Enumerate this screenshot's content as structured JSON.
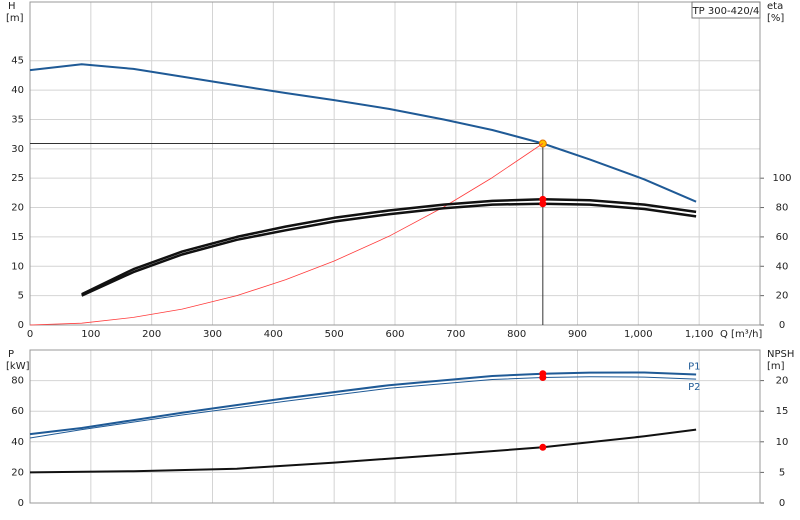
{
  "chart_data": [
    {
      "type": "line",
      "title": "TP 300-420/4",
      "ylabel": "H",
      "yunit": "[m]",
      "y2label": "eta",
      "y2unit": "[%]",
      "xlabel": "Q [m³/h]",
      "xlim": [
        0,
        1200
      ],
      "ylim": [
        0,
        55
      ],
      "y2lim": [
        0,
        220
      ],
      "xticks": [
        0,
        100,
        200,
        300,
        400,
        500,
        600,
        700,
        800,
        900,
        {
          "value": 1000,
          "label": "1,000"
        },
        {
          "value": 1100,
          "label": "1,100"
        }
      ],
      "yticks": [
        0,
        5,
        10,
        15,
        20,
        25,
        30,
        35,
        40,
        45
      ],
      "y2ticks": [
        0,
        20,
        40,
        60,
        80,
        100
      ],
      "grid": true,
      "series": [
        {
          "color": "#1f5a96",
          "width": 2,
          "x": [
            0,
            85,
            170,
            250,
            340,
            420,
            500,
            590,
            680,
            760,
            843,
            920,
            1010,
            1095
          ],
          "values": [
            43.4,
            44.4,
            43.6,
            42.3,
            40.8,
            39.5,
            38.3,
            36.8,
            35,
            33.2,
            30.9,
            28.2,
            24.8,
            21
          ],
          "marker": {
            "x": 843,
            "value": 30.9,
            "color": "#ffc000"
          },
          "guides": true
        },
        {
          "color": "#ff3b3b",
          "width": 0.8,
          "x": [
            0,
            85,
            170,
            250,
            340,
            420,
            500,
            590,
            680,
            760,
            843
          ],
          "values": [
            0,
            0.3,
            1.3,
            2.7,
            5,
            7.7,
            10.9,
            15.1,
            20.1,
            25.1,
            30.9
          ]
        },
        {
          "color": "#111",
          "width": 2.5,
          "axis": "y2",
          "x": [
            85,
            170,
            250,
            340,
            420,
            500,
            590,
            680,
            760,
            843,
            920,
            1010,
            1095
          ],
          "values": [
            21,
            38,
            50,
            60,
            67,
            73,
            78,
            82,
            84.5,
            85.6,
            85,
            82,
            77
          ],
          "marker": {
            "x": 843,
            "value": 85.6,
            "color": "#ff0000"
          }
        },
        {
          "color": "#111",
          "width": 2.5,
          "axis": "y2",
          "x": [
            85,
            170,
            250,
            340,
            420,
            500,
            590,
            680,
            760,
            843,
            920,
            1010,
            1095
          ],
          "values": [
            20,
            36,
            48,
            58,
            64.5,
            70.5,
            75.5,
            79.5,
            82,
            82.6,
            82,
            79,
            74
          ],
          "marker": {
            "x": 843,
            "value": 82.6,
            "color": "#ff0000"
          }
        }
      ]
    },
    {
      "type": "line",
      "ylabel": "P",
      "yunit": "[kW]",
      "y2label": "NPSH",
      "y2unit": "[m]",
      "xlim": [
        0,
        1200
      ],
      "ylim": [
        0,
        100
      ],
      "y2lim": [
        0,
        25
      ],
      "xticks": [
        0,
        100,
        200,
        300,
        400,
        500,
        600,
        700,
        800,
        900,
        1000,
        1100
      ],
      "yticks": [
        0,
        20,
        40,
        60,
        80
      ],
      "y2ticks": [
        0,
        5,
        10,
        15,
        20
      ],
      "grid": true,
      "series": [
        {
          "name": "P1",
          "color": "#1f5a96",
          "width": 2,
          "x": [
            0,
            85,
            250,
            420,
            590,
            760,
            843,
            920,
            1010,
            1095
          ],
          "values": [
            45,
            49,
            59,
            68.5,
            77,
            83,
            84.5,
            85.2,
            85.3,
            84
          ],
          "marker": {
            "x": 843,
            "value": 84.5,
            "color": "#ff0000"
          }
        },
        {
          "name": "P2",
          "color": "#1f5a96",
          "width": 1,
          "x": [
            0,
            85,
            250,
            420,
            590,
            760,
            843,
            920,
            1010,
            1095
          ],
          "values": [
            42.5,
            48,
            57.5,
            66.5,
            75,
            80.7,
            82,
            82.5,
            82.3,
            81
          ],
          "marker": {
            "x": 843,
            "value": 82,
            "color": "#ff0000"
          }
        },
        {
          "color": "#111",
          "width": 2,
          "axis": "y2",
          "x": [
            0,
            170,
            340,
            500,
            680,
            843,
            1010,
            1095
          ],
          "values": [
            5,
            5.2,
            5.6,
            6.6,
            7.9,
            9.1,
            10.9,
            12
          ],
          "marker": {
            "x": 843,
            "value": 9.1,
            "color": "#ff0000"
          }
        }
      ]
    }
  ]
}
